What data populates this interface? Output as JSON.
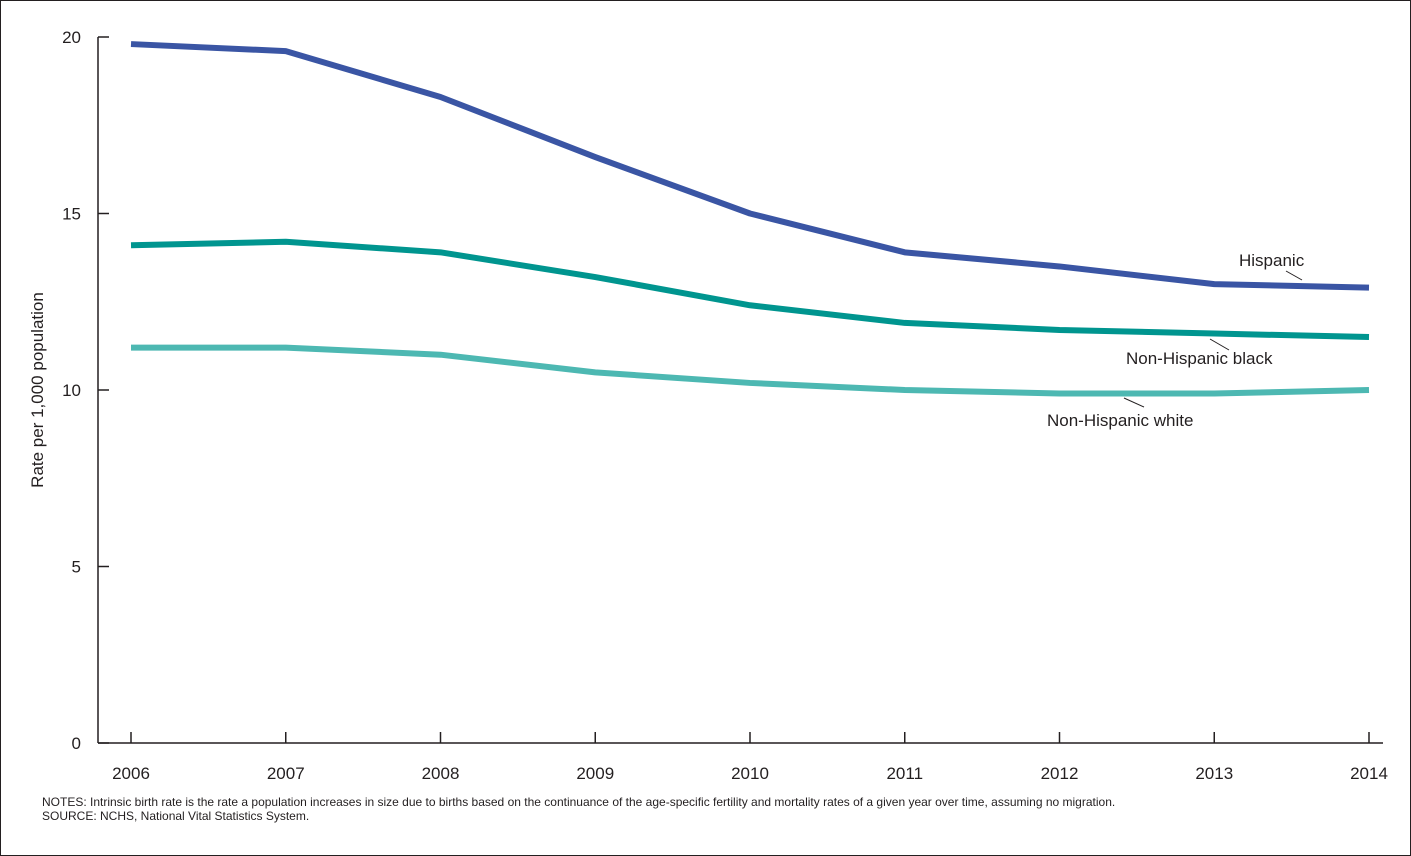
{
  "chart_data": {
    "type": "line",
    "title": "",
    "xlabel": "",
    "ylabel": "Rate per 1,000 population",
    "x": [
      2006,
      2007,
      2008,
      2009,
      2010,
      2011,
      2012,
      2013,
      2014
    ],
    "xlim": [
      2006,
      2014
    ],
    "ylim": [
      0,
      20
    ],
    "yticks": [
      0,
      5,
      10,
      15,
      20
    ],
    "grid": false,
    "legend": "direct labels at right end of lines",
    "series": [
      {
        "name": "Hispanic",
        "color": "#3a55a4",
        "values": [
          19.8,
          19.6,
          18.3,
          16.6,
          15.0,
          13.9,
          13.5,
          13.0,
          12.9
        ]
      },
      {
        "name": "Non-Hispanic black",
        "color": "#00958f",
        "values": [
          14.1,
          14.2,
          13.9,
          13.2,
          12.4,
          11.9,
          11.7,
          11.6,
          11.5
        ]
      },
      {
        "name": "Non-Hispanic white",
        "color": "#4db8b2",
        "values": [
          11.2,
          11.2,
          11.0,
          10.5,
          10.2,
          10.0,
          9.9,
          9.9,
          10.0
        ]
      }
    ]
  },
  "notes": {
    "notes_text": "NOTES: Intrinsic birth rate is the rate a population increases in size due to births based on the continuance of the age-specific fertility and mortality rates of a given year over time, assuming no migration.",
    "source_text": "SOURCE: NCHS, National Vital Statistics System."
  }
}
